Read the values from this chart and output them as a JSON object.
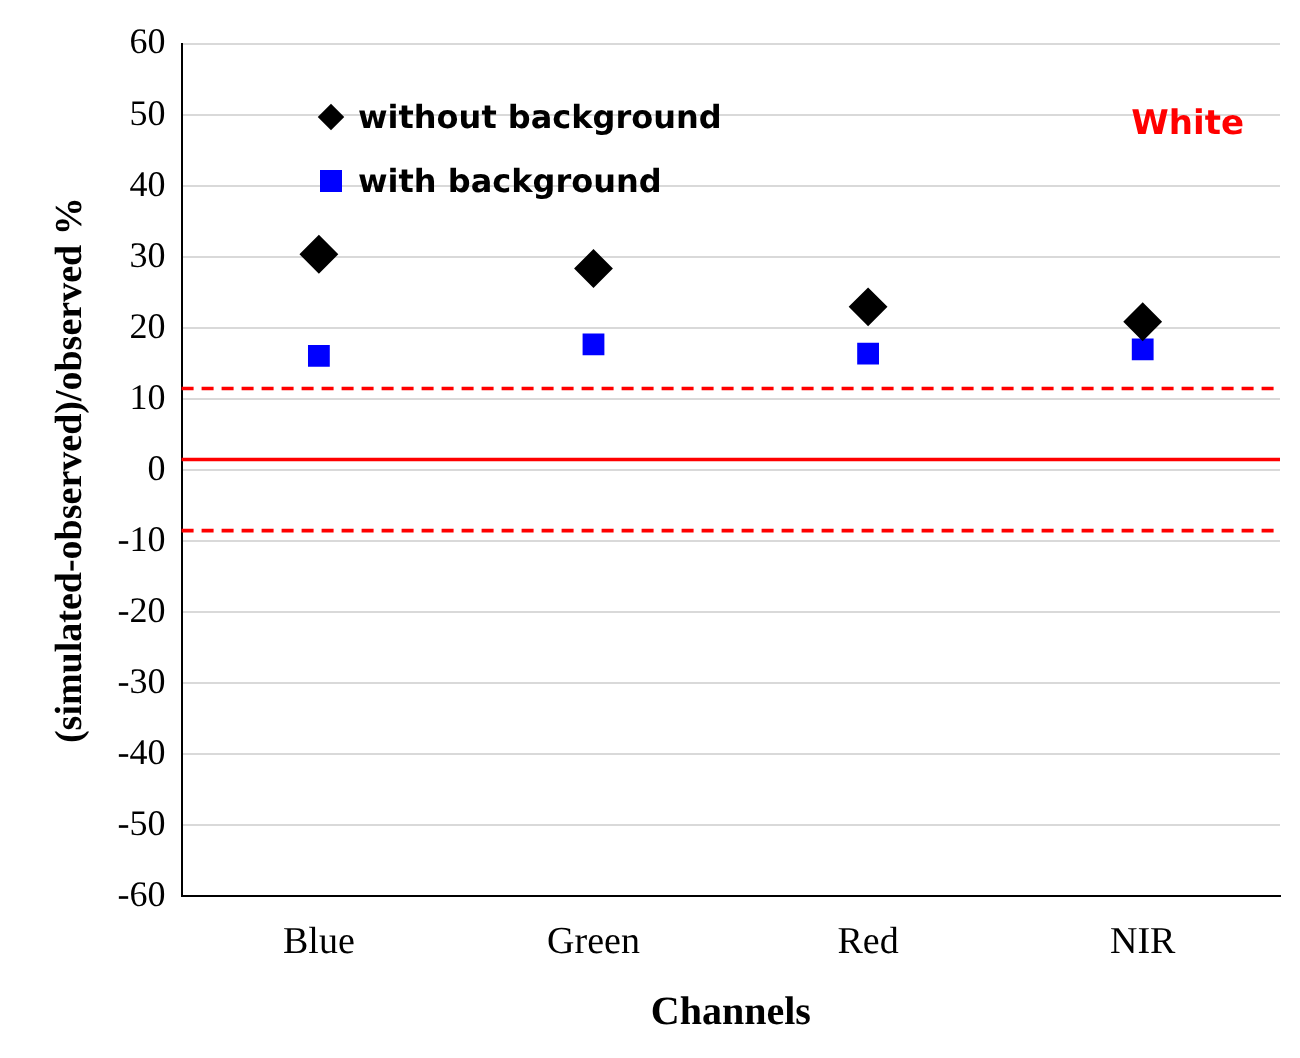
{
  "chart_data": {
    "type": "scatter",
    "xlabel": "Channels",
    "ylabel": "(simulated-observed)/observed %",
    "categories": [
      "Blue",
      "Green",
      "Red",
      "NIR"
    ],
    "series": [
      {
        "name": "without background",
        "color": "#000000",
        "marker": "diamond",
        "values": [
          30.4,
          28.4,
          23.0,
          20.9
        ]
      },
      {
        "name": "with background",
        "color": "#0000ff",
        "marker": "square",
        "values": [
          16.1,
          17.7,
          16.4,
          17.0
        ]
      }
    ],
    "ylim": [
      -60,
      60
    ],
    "yticks": [
      -60,
      -50,
      -40,
      -30,
      -20,
      -10,
      0,
      10,
      20,
      30,
      40,
      50,
      60
    ],
    "grid": "y",
    "legend": "top left",
    "ref_lines": [
      {
        "axis": "y",
        "value": 11.5,
        "color": "#ff0000",
        "line_style": "dashed"
      },
      {
        "axis": "y",
        "value": 1.5,
        "color": "#ff0000",
        "line_style": "solid"
      },
      {
        "axis": "y",
        "value": -8.5,
        "color": "#ff0000",
        "line_style": "dashed"
      }
    ],
    "annotations": [
      "White"
    ]
  }
}
